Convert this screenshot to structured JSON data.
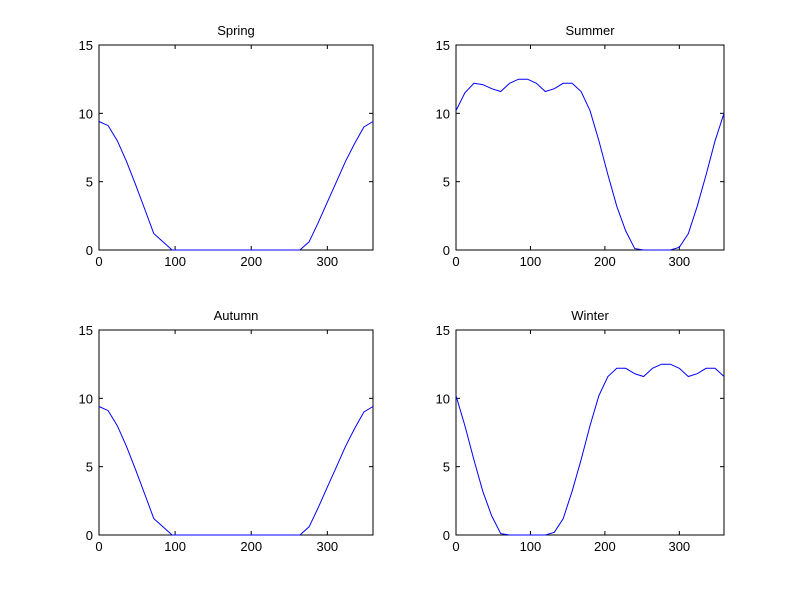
{
  "chart_data": [
    {
      "type": "line",
      "title": "Spring",
      "xlim": [
        0,
        360
      ],
      "ylim": [
        0,
        15
      ],
      "xticks": [
        0,
        100,
        200,
        300
      ],
      "yticks": [
        0,
        5,
        10,
        15
      ],
      "grid": false,
      "series": [
        {
          "color": "#0000ff",
          "x": [
            0,
            12,
            24,
            36,
            48,
            60,
            72,
            84,
            96,
            108,
            120,
            132,
            144,
            156,
            168,
            180,
            192,
            204,
            216,
            228,
            240,
            252,
            264,
            276,
            288,
            300,
            312,
            324,
            336,
            348,
            360
          ],
          "y": [
            9.4,
            9.1,
            8.0,
            6.5,
            4.8,
            3.0,
            1.2,
            0.6,
            0.0,
            0.0,
            0.0,
            0.0,
            0.0,
            0.0,
            0.0,
            0.0,
            0.0,
            0.0,
            0.0,
            0.0,
            0.0,
            0.0,
            0.0,
            0.6,
            2.0,
            3.5,
            5.0,
            6.5,
            7.8,
            9.0,
            9.4
          ]
        }
      ]
    },
    {
      "type": "line",
      "title": "Summer",
      "xlim": [
        0,
        360
      ],
      "ylim": [
        0,
        15
      ],
      "xticks": [
        0,
        100,
        200,
        300
      ],
      "yticks": [
        0,
        5,
        10,
        15
      ],
      "grid": false,
      "series": [
        {
          "color": "#0000ff",
          "x": [
            0,
            12,
            24,
            36,
            48,
            60,
            72,
            84,
            96,
            108,
            120,
            132,
            144,
            156,
            168,
            180,
            192,
            204,
            216,
            228,
            240,
            252,
            264,
            276,
            288,
            300,
            312,
            324,
            336,
            348,
            360
          ],
          "y": [
            10.2,
            11.5,
            12.2,
            12.1,
            11.8,
            11.6,
            12.2,
            12.5,
            12.5,
            12.2,
            11.6,
            11.8,
            12.2,
            12.2,
            11.6,
            10.2,
            8.0,
            5.5,
            3.2,
            1.4,
            0.1,
            0.0,
            0.0,
            0.0,
            0.0,
            0.2,
            1.2,
            3.2,
            5.5,
            8.0,
            10.0
          ]
        }
      ]
    },
    {
      "type": "line",
      "title": "Autumn",
      "xlim": [
        0,
        360
      ],
      "ylim": [
        0,
        15
      ],
      "xticks": [
        0,
        100,
        200,
        300
      ],
      "yticks": [
        0,
        5,
        10,
        15
      ],
      "grid": false,
      "series": [
        {
          "color": "#0000ff",
          "x": [
            0,
            12,
            24,
            36,
            48,
            60,
            72,
            84,
            96,
            108,
            120,
            132,
            144,
            156,
            168,
            180,
            192,
            204,
            216,
            228,
            240,
            252,
            264,
            276,
            288,
            300,
            312,
            324,
            336,
            348,
            360
          ],
          "y": [
            9.4,
            9.1,
            8.0,
            6.5,
            4.8,
            3.0,
            1.2,
            0.6,
            0.0,
            0.0,
            0.0,
            0.0,
            0.0,
            0.0,
            0.0,
            0.0,
            0.0,
            0.0,
            0.0,
            0.0,
            0.0,
            0.0,
            0.0,
            0.6,
            2.0,
            3.5,
            5.0,
            6.5,
            7.8,
            9.0,
            9.4
          ]
        }
      ]
    },
    {
      "type": "line",
      "title": "Winter",
      "xlim": [
        0,
        360
      ],
      "ylim": [
        0,
        15
      ],
      "xticks": [
        0,
        100,
        200,
        300
      ],
      "yticks": [
        0,
        5,
        10,
        15
      ],
      "grid": false,
      "series": [
        {
          "color": "#0000ff",
          "x": [
            0,
            12,
            24,
            36,
            48,
            60,
            72,
            84,
            96,
            108,
            120,
            132,
            144,
            156,
            168,
            180,
            192,
            204,
            216,
            228,
            240,
            252,
            264,
            276,
            288,
            300,
            312,
            324,
            336,
            348,
            360
          ],
          "y": [
            10.2,
            8.0,
            5.5,
            3.2,
            1.4,
            0.1,
            0.0,
            0.0,
            0.0,
            0.0,
            0.0,
            0.2,
            1.2,
            3.2,
            5.5,
            8.0,
            10.2,
            11.6,
            12.2,
            12.2,
            11.8,
            11.6,
            12.2,
            12.5,
            12.5,
            12.2,
            11.6,
            11.8,
            12.2,
            12.2,
            11.6
          ]
        }
      ]
    }
  ]
}
